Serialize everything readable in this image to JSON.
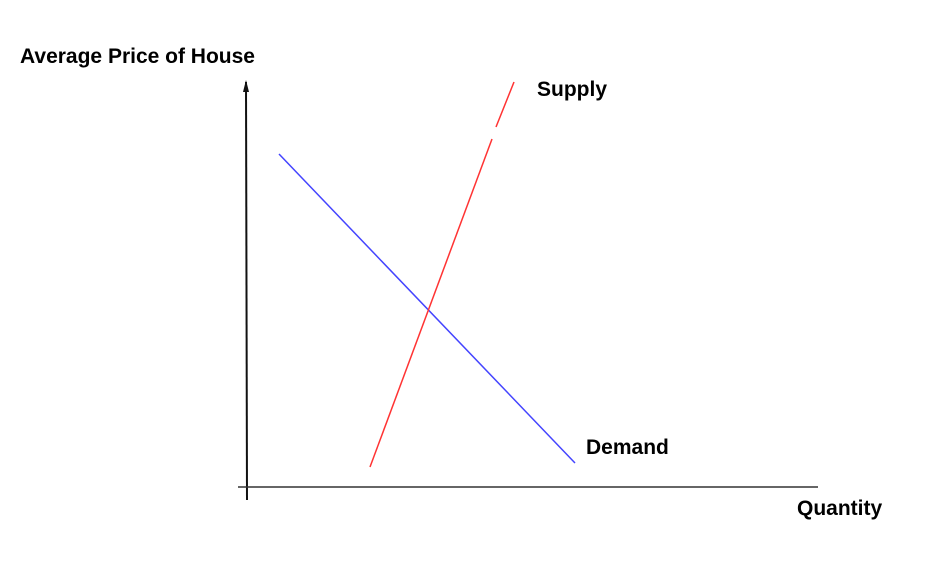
{
  "labels": {
    "y_axis": "Average Price of House",
    "x_axis": "Quantity",
    "supply": "Supply",
    "demand": "Demand"
  },
  "colors": {
    "supply": "#ff3333",
    "demand": "#4444ff",
    "axes": "#000000"
  }
}
